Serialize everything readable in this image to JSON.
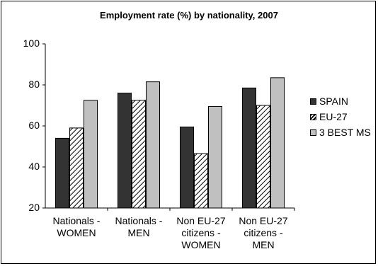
{
  "chart_data": {
    "type": "bar",
    "title": "Employment rate (%)  by nationality, 2007",
    "categories": [
      [
        "Nationals -",
        "WOMEN"
      ],
      [
        "Nationals -",
        "MEN"
      ],
      [
        "Non EU-27",
        "citizens -",
        "WOMEN"
      ],
      [
        "Non EU-27",
        "citizens -",
        "MEN"
      ]
    ],
    "series": [
      {
        "name": "SPAIN",
        "values": [
          54,
          76,
          59.5,
          78.5
        ],
        "color": "#333333",
        "pattern": "solid"
      },
      {
        "name": "EU-27",
        "values": [
          59,
          72.5,
          46.5,
          70
        ],
        "color": "#ffffff",
        "pattern": "hatch"
      },
      {
        "name": "3 BEST MS",
        "values": [
          72.5,
          81.5,
          69.5,
          83.5
        ],
        "color": "#c0c0c0",
        "pattern": "solid"
      }
    ],
    "ylim": [
      20,
      100
    ],
    "yticks": [
      "20",
      "40",
      "60",
      "80",
      "100"
    ],
    "xlabel": "",
    "ylabel": "",
    "grid": false,
    "legend": "right"
  }
}
